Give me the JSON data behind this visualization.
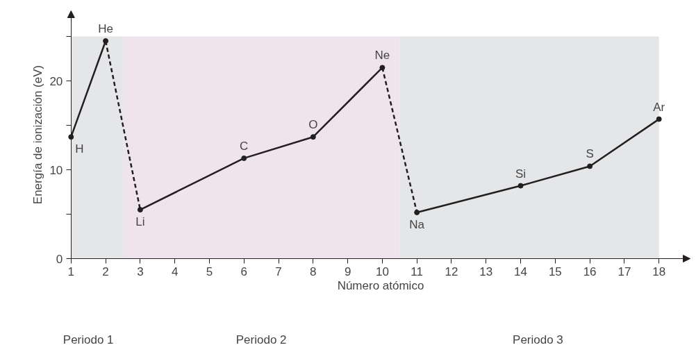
{
  "chart_data": {
    "type": "line",
    "xlabel": "Número atómico",
    "ylabel": "Energía de ionización (eV)",
    "xlim": [
      1,
      18.9
    ],
    "ylim": [
      0,
      27.9
    ],
    "xticks": [
      1,
      2,
      3,
      4,
      5,
      6,
      7,
      8,
      9,
      10,
      11,
      12,
      13,
      14,
      15,
      16,
      17,
      18
    ],
    "yticks": [
      0,
      {
        "value": 5,
        "label": null
      },
      10,
      {
        "value": 15,
        "label": null
      },
      20,
      {
        "value": 25,
        "label": null
      }
    ],
    "grid": false,
    "marker": "circle",
    "series": [
      {
        "color": "#231f20",
        "x": [
          1,
          2
        ],
        "values": [
          13.7,
          24.5
        ],
        "line_style": "solid"
      },
      {
        "color": "#231f20",
        "x": [
          2,
          3
        ],
        "values": [
          24.5,
          5.5
        ],
        "line_style": "dashed",
        "marker": "none"
      },
      {
        "color": "#231f20",
        "x": [
          3,
          6,
          8,
          10
        ],
        "values": [
          5.5,
          11.3,
          13.7,
          21.5
        ],
        "line_style": "solid"
      },
      {
        "color": "#231f20",
        "x": [
          10,
          11
        ],
        "values": [
          21.5,
          5.2
        ],
        "line_style": "dashed",
        "marker": "none"
      },
      {
        "color": "#231f20",
        "x": [
          11,
          14,
          16,
          18
        ],
        "values": [
          5.2,
          8.2,
          10.4,
          15.7
        ],
        "line_style": "solid"
      }
    ],
    "bands": [
      {
        "axis": "x",
        "from": 1,
        "to": 2.5,
        "color": "#e5e6e8"
      },
      {
        "axis": "x",
        "from": 2.5,
        "to": 10.5,
        "color": "#efe3ec"
      },
      {
        "axis": "x",
        "from": 10.5,
        "to": 18,
        "color": "#e5e6e8"
      }
    ],
    "annotations": [
      {
        "text": "H",
        "x": 1,
        "y": 13.7
      },
      {
        "text": "He",
        "x": 2,
        "y": 24.5
      },
      {
        "text": "Li",
        "x": 3,
        "y": 5.5
      },
      {
        "text": "C",
        "x": 6,
        "y": 11.3
      },
      {
        "text": "O",
        "x": 8,
        "y": 13.7
      },
      {
        "text": "Ne",
        "x": 10,
        "y": 21.5
      },
      {
        "text": "Na",
        "x": 11,
        "y": 5.2
      },
      {
        "text": "Si",
        "x": 14,
        "y": 8.2
      },
      {
        "text": "S",
        "x": 16,
        "y": 10.4
      },
      {
        "text": "Ar",
        "x": 18,
        "y": 15.7
      },
      "Periodo 1",
      "Periodo 2",
      "Periodo 3"
    ]
  }
}
